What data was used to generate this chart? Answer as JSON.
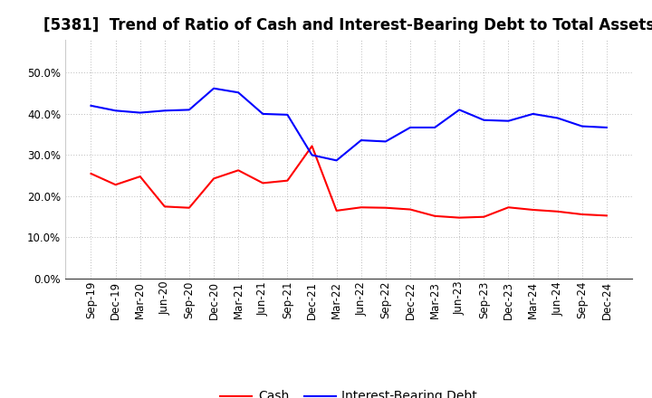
{
  "title": "[5381]  Trend of Ratio of Cash and Interest-Bearing Debt to Total Assets",
  "x_labels": [
    "Sep-19",
    "Dec-19",
    "Mar-20",
    "Jun-20",
    "Sep-20",
    "Dec-20",
    "Mar-21",
    "Jun-21",
    "Sep-21",
    "Dec-21",
    "Mar-22",
    "Jun-22",
    "Sep-22",
    "Dec-22",
    "Mar-23",
    "Jun-23",
    "Sep-23",
    "Dec-23",
    "Mar-24",
    "Jun-24",
    "Sep-24",
    "Dec-24"
  ],
  "cash": [
    0.255,
    0.228,
    0.248,
    0.175,
    0.172,
    0.243,
    0.263,
    0.232,
    0.238,
    0.322,
    0.165,
    0.173,
    0.172,
    0.168,
    0.152,
    0.148,
    0.15,
    0.173,
    0.167,
    0.163,
    0.156,
    0.153
  ],
  "interest_bearing_debt": [
    0.42,
    0.408,
    0.403,
    0.408,
    0.41,
    0.462,
    0.452,
    0.4,
    0.398,
    0.3,
    0.287,
    0.336,
    0.333,
    0.367,
    0.367,
    0.41,
    0.385,
    0.383,
    0.4,
    0.39,
    0.37,
    0.367
  ],
  "cash_color": "#ff0000",
  "debt_color": "#0000ff",
  "background_color": "#ffffff",
  "grid_color": "#aaaaaa",
  "ylim": [
    0.0,
    0.58
  ],
  "yticks": [
    0.0,
    0.1,
    0.2,
    0.3,
    0.4,
    0.5
  ],
  "legend_cash": "Cash",
  "legend_debt": "Interest-Bearing Debt",
  "title_fontsize": 12,
  "axis_fontsize": 8.5,
  "legend_fontsize": 10
}
